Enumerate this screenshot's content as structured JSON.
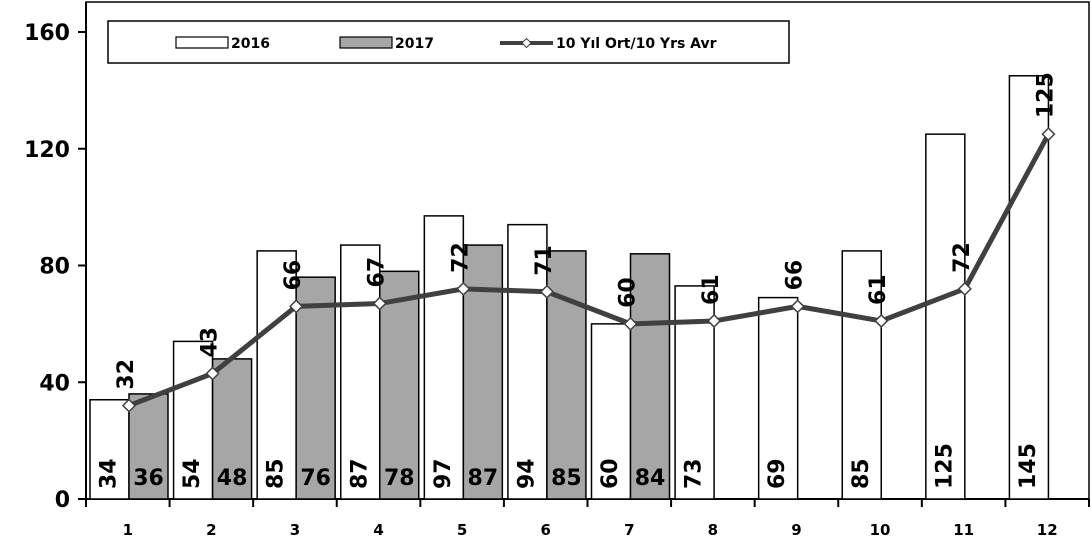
{
  "chart_data": {
    "type": "bar",
    "categories": [
      "1",
      "2",
      "3",
      "4",
      "5",
      "6",
      "7",
      "8",
      "9",
      "10",
      "11",
      "12"
    ],
    "series": [
      {
        "name": "2016",
        "kind": "bar",
        "color": "#ffffff",
        "values": [
          34,
          54,
          85,
          87,
          97,
          94,
          60,
          73,
          69,
          85,
          125,
          145
        ]
      },
      {
        "name": "2017",
        "kind": "bar",
        "color": "#a6a6a6",
        "values": [
          36,
          48,
          76,
          78,
          87,
          85,
          84,
          null,
          null,
          null,
          null,
          null
        ]
      },
      {
        "name": "10 Yıl Ort/10 Yrs Avr",
        "kind": "line",
        "color": "#404040",
        "values": [
          32,
          43,
          66,
          67,
          72,
          71,
          60,
          61,
          66,
          61,
          72,
          125
        ]
      }
    ],
    "ylim": [
      0,
      160
    ],
    "yticks": [
      "0",
      "40",
      "80",
      "120",
      "160"
    ],
    "legend_position": "top",
    "grid": false
  }
}
